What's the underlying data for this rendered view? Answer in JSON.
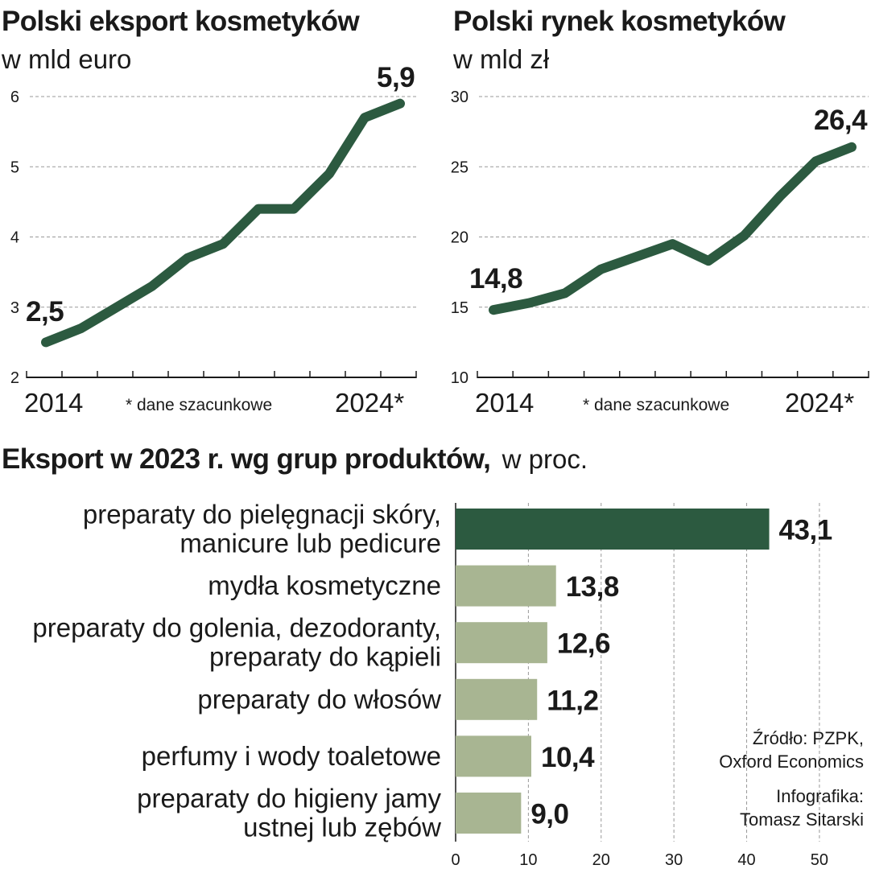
{
  "colors": {
    "dark_green": "#2c5a40",
    "light_green": "#a8b592",
    "grid": "#999999",
    "text": "#1a1a1a"
  },
  "chart_data": [
    {
      "type": "line",
      "title": "Polski eksport kosmetyków",
      "subtitle": "w mld euro",
      "x": [
        2014,
        2015,
        2016,
        2017,
        2018,
        2019,
        2020,
        2021,
        2022,
        2023,
        2024
      ],
      "values": [
        2.5,
        2.7,
        3.0,
        3.3,
        3.7,
        3.9,
        4.4,
        4.4,
        4.9,
        5.7,
        5.9
      ],
      "ylim": [
        2,
        6
      ],
      "yticks": [
        "2",
        "3",
        "4",
        "5",
        "6"
      ],
      "start_label": "2014",
      "end_label": "2024*",
      "note": "* dane szacunkowe",
      "first_value_label": "2,5",
      "last_value_label": "5,9"
    },
    {
      "type": "line",
      "title": "Polski rynek kosmetyków",
      "subtitle": "w mld zł",
      "x": [
        2014,
        2015,
        2016,
        2017,
        2018,
        2019,
        2020,
        2021,
        2022,
        2023,
        2024
      ],
      "values": [
        14.8,
        15.3,
        16.0,
        17.7,
        18.6,
        19.5,
        18.3,
        20.1,
        22.9,
        25.4,
        26.4
      ],
      "ylim": [
        10,
        30
      ],
      "yticks": [
        "10",
        "15",
        "20",
        "25",
        "30"
      ],
      "start_label": "2014",
      "end_label": "2024*",
      "note": "* dane szacunkowe",
      "first_value_label": "14,8",
      "last_value_label": "26,4"
    },
    {
      "type": "bar",
      "orientation": "horizontal",
      "title": "Eksport w 2023 r. wg grup produktów,",
      "title_suffix": "w proc.",
      "categories": [
        [
          "preparaty do pielęgnacji skóry,",
          "manicure lub pedicure"
        ],
        [
          "mydła kosmetyczne"
        ],
        [
          "preparaty do golenia, dezodoranty,",
          "preparaty do kąpieli"
        ],
        [
          "preparaty do włosów"
        ],
        [
          "perfumy i wody toaletowe"
        ],
        [
          "preparaty do higieny jamy",
          "ustnej lub zębów"
        ]
      ],
      "values": [
        43.1,
        13.8,
        12.6,
        11.2,
        10.4,
        9.0
      ],
      "value_labels": [
        "43,1",
        "13,8",
        "12,6",
        "11,2",
        "10,4",
        "9,0"
      ],
      "highlight_index": 0,
      "xlim": [
        0,
        52
      ],
      "xticks": [
        "0",
        "10",
        "20",
        "30",
        "40",
        "50"
      ]
    }
  ],
  "credits": {
    "source_lines": [
      "Źródło: PZPK,",
      "Oxford Economics"
    ],
    "author_lines": [
      "Infografika:",
      "Tomasz Sitarski"
    ]
  }
}
